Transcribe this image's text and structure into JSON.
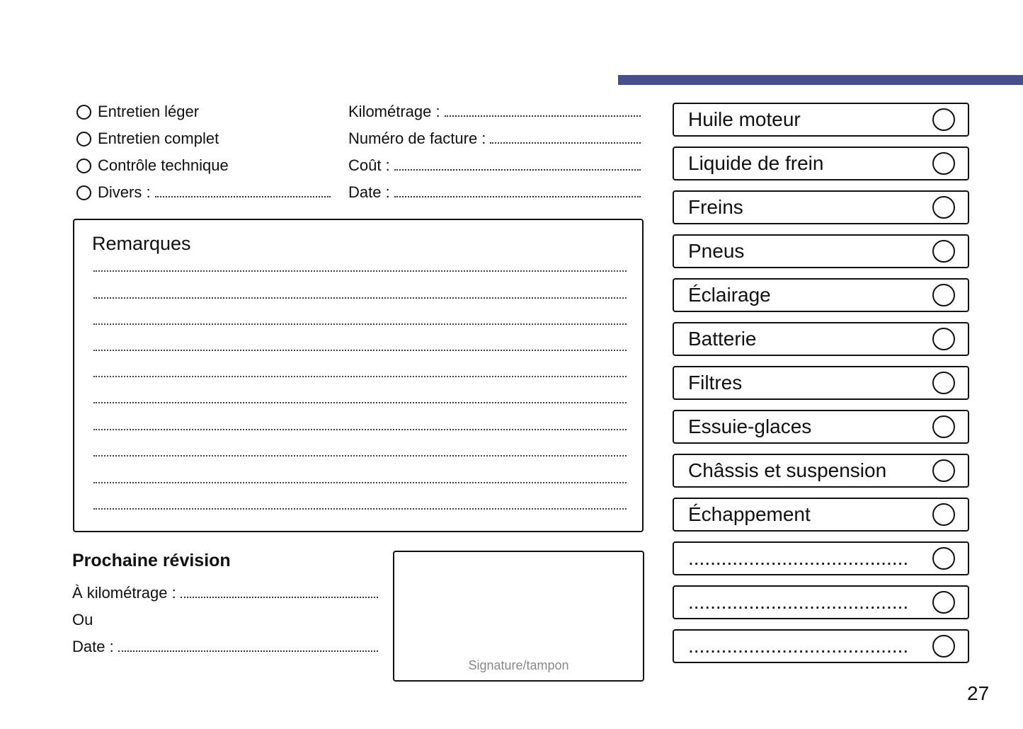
{
  "service_types": [
    {
      "label": "Entretien léger"
    },
    {
      "label": "Entretien complet"
    },
    {
      "label": "Contrôle technique"
    },
    {
      "label": "Divers :"
    }
  ],
  "fields": [
    {
      "label": "Kilométrage :"
    },
    {
      "label": "Numéro de facture :"
    },
    {
      "label": "Coût :"
    },
    {
      "label": "Date :"
    }
  ],
  "remarks": {
    "title": "Remarques"
  },
  "next_service": {
    "title": "Prochaine révision",
    "mileage_label": "À kilométrage :",
    "or_label": "Ou",
    "date_label": "Date :"
  },
  "signature": {
    "label": "Signature/tampon"
  },
  "checklist": [
    {
      "label": "Huile moteur"
    },
    {
      "label": "Liquide de frein"
    },
    {
      "label": "Freins"
    },
    {
      "label": "Pneus"
    },
    {
      "label": "Éclairage"
    },
    {
      "label": "Batterie"
    },
    {
      "label": "Filtres"
    },
    {
      "label": "Essuie-glaces"
    },
    {
      "label": "Châssis et suspension"
    },
    {
      "label": "Échappement"
    },
    {
      "label": "........................................"
    },
    {
      "label": "........................................"
    },
    {
      "label": "........................................"
    }
  ],
  "page_number": "27",
  "colors": {
    "accent_bar": "#464e8c"
  }
}
